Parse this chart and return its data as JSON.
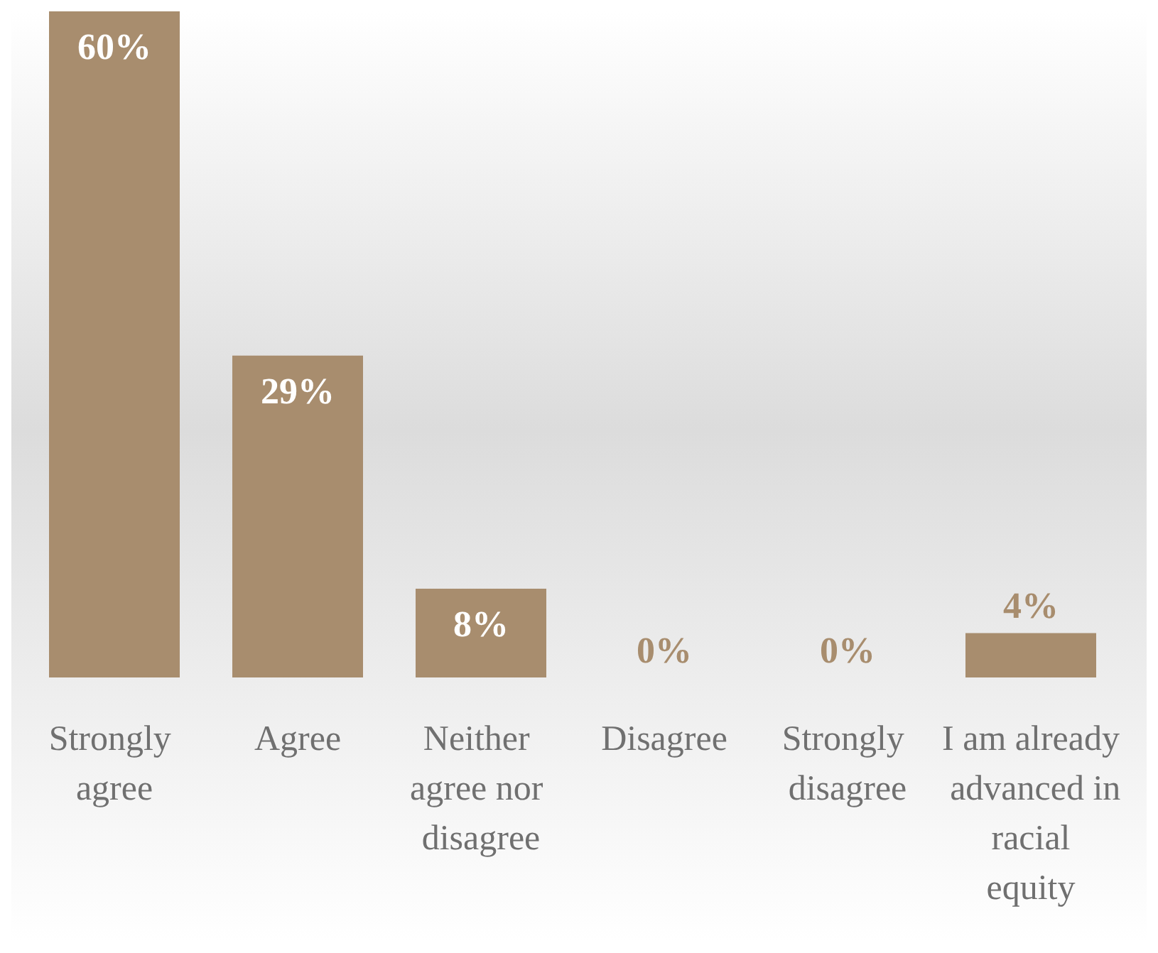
{
  "chart_data": {
    "type": "bar",
    "categories": [
      "Strongly agree",
      "Agree",
      "Neither agree nor disagree",
      "Disagree",
      "Strongly disagree",
      "I am already advanced in racial equity"
    ],
    "values": [
      60,
      29,
      8,
      0,
      0,
      4
    ],
    "value_labels": [
      "60%",
      "29%",
      "8%",
      "0%",
      "0%",
      "4%"
    ],
    "color": "#a88d6e"
  }
}
